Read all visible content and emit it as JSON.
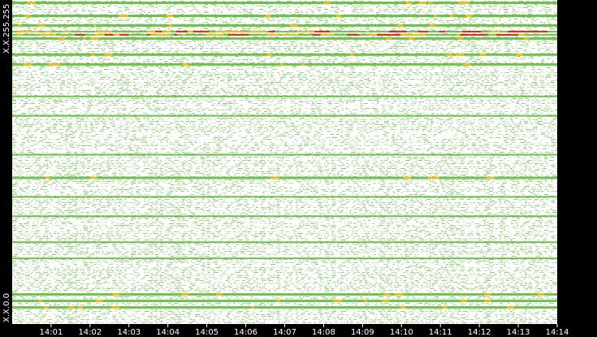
{
  "chart_data": {
    "type": "heatmap",
    "title": "",
    "xlabel": "",
    "ylabel": "",
    "x_ticks": [
      "14:01",
      "14:02",
      "14:03",
      "14:04",
      "14:05",
      "14:06",
      "14:07",
      "14:08",
      "14:09",
      "14:10",
      "14:11",
      "14:12",
      "14:13",
      "14:14"
    ],
    "xlim": [
      "14:00",
      "14:14"
    ],
    "y_ticks": [
      "X.X.255.255",
      "X.X.0.0"
    ],
    "y_order": "255.255 at top, 0.0 at bottom",
    "background_color": "#ffffff",
    "frame_color": "#000000",
    "axis_text_color": "#ffffff",
    "color_scale": [
      "#70c050",
      "#e8c020",
      "#d03020"
    ],
    "grid": false,
    "legend": "none",
    "rows": [
      {
        "y": 0.995,
        "intensity": "high"
      },
      {
        "y": 0.955,
        "intensity": "high"
      },
      {
        "y": 0.925,
        "intensity": "high"
      },
      {
        "y": 0.905,
        "intensity": "very-high"
      },
      {
        "y": 0.895,
        "intensity": "very-high"
      },
      {
        "y": 0.885,
        "intensity": "high"
      },
      {
        "y": 0.835,
        "intensity": "high"
      },
      {
        "y": 0.805,
        "intensity": "high"
      },
      {
        "y": 0.705,
        "intensity": "medium"
      },
      {
        "y": 0.645,
        "intensity": "medium"
      },
      {
        "y": 0.525,
        "intensity": "medium"
      },
      {
        "y": 0.455,
        "intensity": "high"
      },
      {
        "y": 0.395,
        "intensity": "medium"
      },
      {
        "y": 0.335,
        "intensity": "medium"
      },
      {
        "y": 0.255,
        "intensity": "medium"
      },
      {
        "y": 0.205,
        "intensity": "medium"
      },
      {
        "y": 0.095,
        "intensity": "high"
      },
      {
        "y": 0.075,
        "intensity": "high"
      },
      {
        "y": 0.055,
        "intensity": "high"
      }
    ]
  }
}
